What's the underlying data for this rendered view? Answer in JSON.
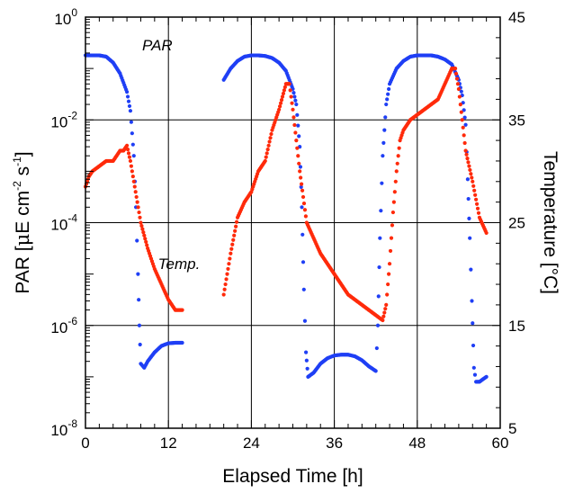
{
  "chart_data": {
    "type": "scatter",
    "title": "",
    "xlabel": "Elapsed Time [h]",
    "ylabel_left": {
      "text": "PAR [",
      "mu": "μ",
      "unit": "E cm",
      "exp1": "-2",
      "mid": " s",
      "exp2": "-1",
      "end": "]"
    },
    "ylabel_right": "Temperature [°C]",
    "x": {
      "min": 0,
      "max": 60,
      "ticks": [
        0,
        12,
        24,
        36,
        48,
        60
      ],
      "tick_labels": [
        "0",
        "12",
        "24",
        "36",
        "48",
        "60"
      ]
    },
    "y_left": {
      "scale": "log",
      "min": 1e-08,
      "max": 1,
      "ticks": [
        {
          "base": "10",
          "exp": "0"
        },
        {
          "base": "10",
          "exp": "-2"
        },
        {
          "base": "10",
          "exp": "-4"
        },
        {
          "base": "10",
          "exp": "-6"
        },
        {
          "base": "10",
          "exp": "-8"
        }
      ]
    },
    "y_right": {
      "scale": "linear",
      "min": 5,
      "max": 45,
      "ticks": [
        45,
        35,
        25,
        15,
        5
      ],
      "tick_labels": [
        "45",
        "35",
        "25",
        "15",
        "5"
      ]
    },
    "grid": true,
    "annotations": [
      {
        "text": "PAR",
        "x": 8.2,
        "y_left": 0.2
      },
      {
        "text": "Temp.",
        "x": 10.5,
        "y_left": 1.6e-05
      }
    ],
    "series": [
      {
        "name": "PAR",
        "axis": "left",
        "color": "#1f3ff5",
        "points": [
          [
            0,
            0.18
          ],
          [
            1,
            0.18
          ],
          [
            2,
            0.18
          ],
          [
            3,
            0.17
          ],
          [
            4,
            0.13
          ],
          [
            5,
            0.08
          ],
          [
            6,
            0.035
          ],
          [
            6.5,
            0.015
          ],
          [
            7,
            0.002
          ],
          [
            7.3,
            0.0002
          ],
          [
            7.6,
            1e-05
          ],
          [
            7.8,
            1e-06
          ],
          [
            8,
            1.8e-07
          ],
          [
            8.5,
            1.5e-07
          ],
          [
            9,
            2e-07
          ],
          [
            10,
            3e-07
          ],
          [
            11,
            4e-07
          ],
          [
            12,
            4.5e-07
          ],
          [
            13,
            4.6e-07
          ],
          [
            14,
            4.6e-07
          ],
          [
            20,
            0.06
          ],
          [
            21,
            0.1
          ],
          [
            22,
            0.14
          ],
          [
            23,
            0.17
          ],
          [
            24,
            0.18
          ],
          [
            25,
            0.18
          ],
          [
            26,
            0.175
          ],
          [
            27,
            0.16
          ],
          [
            28,
            0.13
          ],
          [
            29,
            0.09
          ],
          [
            30,
            0.04
          ],
          [
            30.5,
            0.02
          ],
          [
            31,
            0.003
          ],
          [
            31.3,
            0.0002
          ],
          [
            31.6,
            5e-06
          ],
          [
            31.9,
            3e-07
          ],
          [
            32.2,
            1e-07
          ],
          [
            33,
            1.2e-07
          ],
          [
            34,
            1.8e-07
          ],
          [
            35,
            2.3e-07
          ],
          [
            36,
            2.6e-07
          ],
          [
            37,
            2.7e-07
          ],
          [
            38,
            2.7e-07
          ],
          [
            39,
            2.5e-07
          ],
          [
            40,
            2.1e-07
          ],
          [
            41,
            1.6e-07
          ],
          [
            42,
            1.3e-07
          ],
          [
            42.3,
            1e-06
          ],
          [
            42.6,
            5e-05
          ],
          [
            43,
            0.002
          ],
          [
            43.5,
            0.02
          ],
          [
            44,
            0.05
          ],
          [
            45,
            0.1
          ],
          [
            46,
            0.14
          ],
          [
            47,
            0.17
          ],
          [
            48,
            0.18
          ],
          [
            49,
            0.18
          ],
          [
            50,
            0.18
          ],
          [
            51,
            0.17
          ],
          [
            52,
            0.15
          ],
          [
            53,
            0.12
          ],
          [
            54,
            0.06
          ],
          [
            54.5,
            0.03
          ],
          [
            55,
            0.008
          ],
          [
            55.3,
            0.0007
          ],
          [
            55.6,
            5e-05
          ],
          [
            55.9,
            3e-06
          ],
          [
            56.2,
            1.5e-07
          ],
          [
            56.5,
            8e-08
          ],
          [
            57,
            8e-08
          ],
          [
            57.5,
            9e-08
          ],
          [
            58,
            1e-07
          ]
        ]
      },
      {
        "name": "Temp.",
        "axis": "right",
        "color": "#ff2a0a",
        "points": [
          [
            0,
            28.5
          ],
          [
            0.5,
            29.5
          ],
          [
            1,
            30
          ],
          [
            2,
            30.5
          ],
          [
            3,
            31
          ],
          [
            4,
            31
          ],
          [
            5,
            32
          ],
          [
            5.5,
            32
          ],
          [
            6,
            32.5
          ],
          [
            6.5,
            31
          ],
          [
            7,
            29
          ],
          [
            7.5,
            27
          ],
          [
            8,
            25
          ],
          [
            9,
            22.5
          ],
          [
            10,
            20.5
          ],
          [
            11,
            19
          ],
          [
            12,
            17.5
          ],
          [
            13,
            16.5
          ],
          [
            14,
            16.5
          ],
          [
            20,
            18
          ],
          [
            21,
            22
          ],
          [
            22,
            25.5
          ],
          [
            23,
            27
          ],
          [
            24,
            28
          ],
          [
            25,
            30
          ],
          [
            26,
            31
          ],
          [
            27,
            34
          ],
          [
            28,
            36
          ],
          [
            29,
            38.5
          ],
          [
            29.5,
            38.5
          ],
          [
            30,
            36
          ],
          [
            30.5,
            33
          ],
          [
            31,
            30
          ],
          [
            32,
            25
          ],
          [
            33,
            23.5
          ],
          [
            34,
            22
          ],
          [
            35,
            21
          ],
          [
            36,
            20
          ],
          [
            37,
            19
          ],
          [
            38,
            18
          ],
          [
            39,
            17.5
          ],
          [
            40,
            17
          ],
          [
            41,
            16.5
          ],
          [
            42,
            16
          ],
          [
            43,
            15.5
          ],
          [
            43.5,
            17
          ],
          [
            44,
            21
          ],
          [
            44.5,
            26
          ],
          [
            45,
            30
          ],
          [
            45.5,
            33
          ],
          [
            46,
            34
          ],
          [
            47,
            35
          ],
          [
            48,
            35.5
          ],
          [
            49,
            36
          ],
          [
            50,
            36.5
          ],
          [
            51,
            37
          ],
          [
            52,
            38.5
          ],
          [
            53,
            40
          ],
          [
            53.5,
            40
          ],
          [
            54,
            38
          ],
          [
            54.5,
            35
          ],
          [
            55,
            32
          ],
          [
            56,
            29
          ],
          [
            57,
            25.5
          ],
          [
            58,
            24
          ]
        ]
      }
    ]
  }
}
